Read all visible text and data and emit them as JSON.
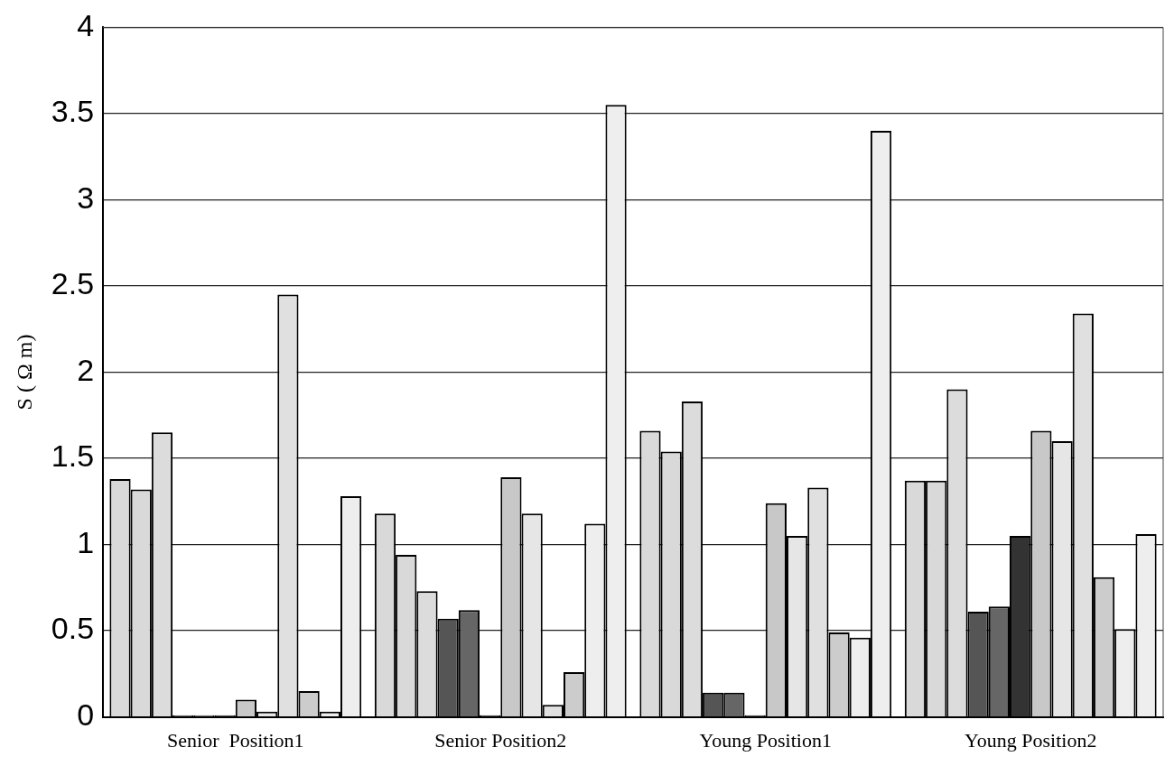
{
  "chart_data": {
    "type": "bar",
    "ylabel": "S ( Ω m)",
    "categories": [
      "Senior  Position1",
      "Senior Position2",
      "Young Position1",
      "Young Position2"
    ],
    "series": [
      {
        "color": "#d9d9d9",
        "values": [
          1.38,
          1.18,
          1.66,
          1.37
        ]
      },
      {
        "color": "#d9d9d9",
        "values": [
          1.32,
          0.94,
          1.54,
          1.37
        ]
      },
      {
        "color": "#dcdcdc",
        "values": [
          1.65,
          0.73,
          1.83,
          1.9
        ]
      },
      {
        "color": "#555555",
        "values": [
          0.01,
          0.57,
          0.14,
          0.61
        ]
      },
      {
        "color": "#666666",
        "values": [
          0.01,
          0.62,
          0.14,
          0.64
        ]
      },
      {
        "color": "#333333",
        "values": [
          0.01,
          0.01,
          0.01,
          1.05
        ]
      },
      {
        "color": "#c8c8c8",
        "values": [
          0.1,
          1.39,
          1.24,
          1.66
        ]
      },
      {
        "color": "#e6e6e6",
        "values": [
          0.03,
          1.18,
          1.05,
          1.6
        ]
      },
      {
        "color": "#e0e0e0",
        "values": [
          2.45,
          0.07,
          1.33,
          2.34
        ]
      },
      {
        "color": "#cccccc",
        "values": [
          0.15,
          0.26,
          0.49,
          0.81
        ]
      },
      {
        "color": "#eeeeee",
        "values": [
          0.03,
          1.12,
          0.46,
          0.51
        ]
      },
      {
        "color": "#eeeeee",
        "values": [
          1.28,
          3.55,
          3.4,
          1.06
        ]
      }
    ],
    "ylim": [
      0,
      4
    ],
    "yticks": [
      0,
      0.5,
      1,
      1.5,
      2,
      2.5,
      3,
      3.5,
      4
    ],
    "grid": "y",
    "legend": false
  }
}
